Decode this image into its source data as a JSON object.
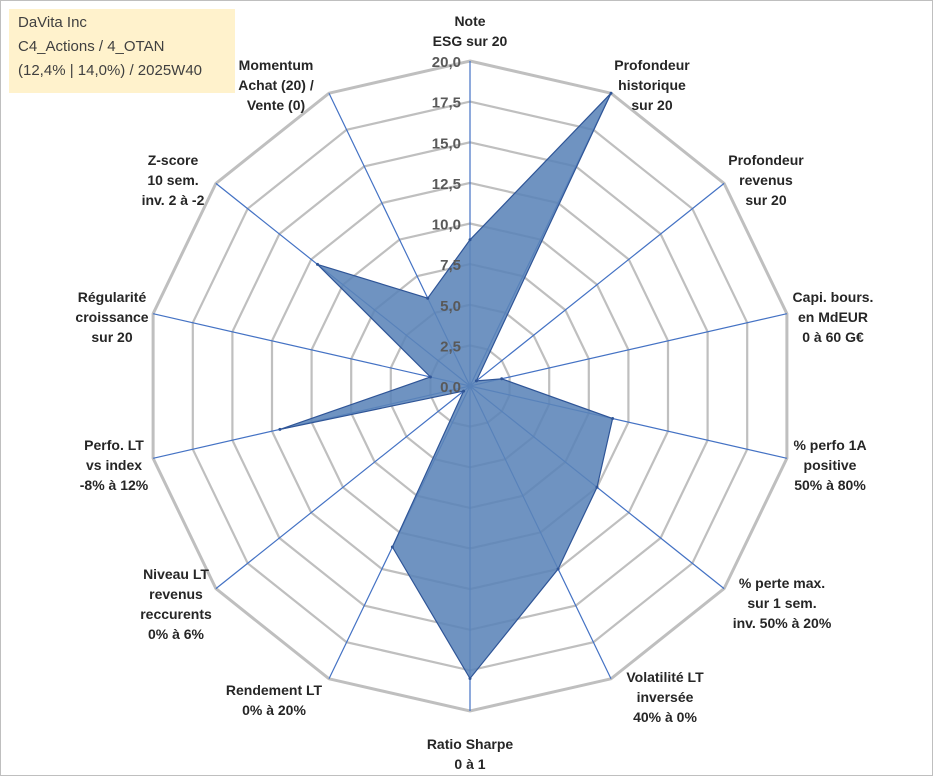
{
  "title_box": {
    "line1": "DaVita Inc",
    "line2": "C4_Actions / 4_OTAN",
    "line3": "(12,4% | 14,0%) / 2025W40"
  },
  "colors": {
    "grid": "#bfbfbf",
    "spoke": "#4472c4",
    "fill": "#5b84b8",
    "fill_stroke": "#2f5597",
    "title_bg": "#fff2cc"
  },
  "chart_data": {
    "type": "radar",
    "r_min": 0,
    "r_max": 20,
    "r_ticks": [
      "0,0",
      "2,5",
      "5,0",
      "7,5",
      "10,0",
      "12,5",
      "15,0",
      "17,5",
      "20,0"
    ],
    "grid": true,
    "axes": [
      [
        "Note",
        "ESG sur 20"
      ],
      [
        "Profondeur",
        "historique",
        "sur 20"
      ],
      [
        "Profondeur",
        "revenus",
        "sur 20"
      ],
      [
        "Capi. bours.",
        "en MdEUR",
        "0 à 60 G€"
      ],
      [
        "% perfo 1A",
        "positive",
        "50% à 80%"
      ],
      [
        "% perte max.",
        "sur 1 sem.",
        "inv. 50% à 20%"
      ],
      [
        "Volatilité LT",
        "inversée",
        "40% à 0%"
      ],
      [
        "Ratio Sharpe",
        "0 à 1"
      ],
      [
        "Rendement LT",
        "0% à 20%"
      ],
      [
        "Niveau LT",
        "revenus",
        "reccurents",
        "0% à 6%"
      ],
      [
        "Perfo. LT",
        "vs index",
        "-8% à 12%"
      ],
      [
        "Régularité",
        "croissance",
        "sur 20"
      ],
      [
        "Z-score",
        "10 sem.",
        "inv. 2 à -2"
      ],
      [
        "Momentum",
        "Achat (20) /",
        "Vente (0)"
      ]
    ],
    "series": [
      {
        "values": [
          9.0,
          20.0,
          0.5,
          2.0,
          9.0,
          10.0,
          12.5,
          18.0,
          11.0,
          0.5,
          12.0,
          2.5,
          12.0,
          6.0
        ]
      }
    ]
  }
}
